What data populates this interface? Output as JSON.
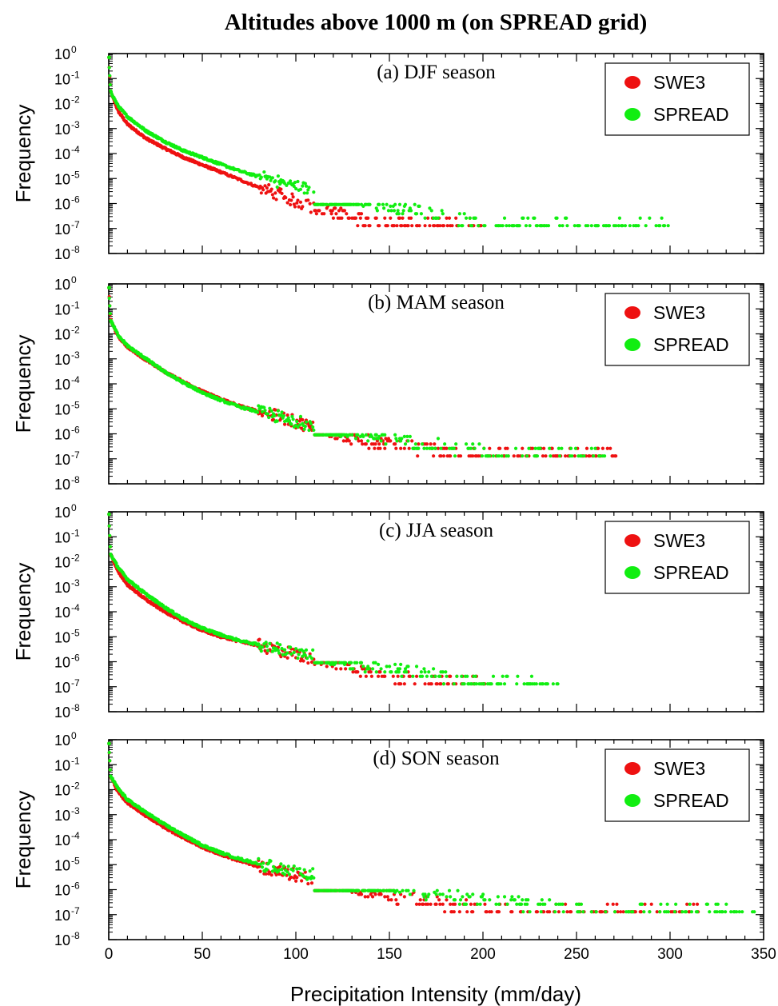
{
  "title": "Altitudes above 1000 m (on SPREAD grid)",
  "xlabel": "Precipitation Intensity (mm/day)",
  "ylabel": "Frequency",
  "colors": {
    "SWE3": "#ee1111",
    "SPREAD": "#11ee11"
  },
  "chart_data": [
    {
      "type": "scatter",
      "label": "(a) DJF season",
      "xlim": [
        0,
        350
      ],
      "ylim_log10": [
        -8,
        0
      ],
      "x_ticks": [
        0,
        50,
        100,
        150,
        200,
        250,
        300,
        350
      ],
      "y_tick_exponents": [
        0,
        -1,
        -2,
        -3,
        -4,
        -5,
        -6,
        -7,
        -8
      ],
      "legend": [
        "SWE3",
        "SPREAD"
      ],
      "legend_position": "top-right",
      "series": [
        {
          "name": "SWE3",
          "max_x": 199,
          "points": [
            [
              0,
              0.7
            ],
            [
              1,
              0.03
            ],
            [
              5,
              0.005
            ],
            [
              10,
              0.0015
            ],
            [
              20,
              0.0004
            ],
            [
              30,
              0.00016
            ],
            [
              40,
              7e-05
            ],
            [
              50,
              3.5e-05
            ],
            [
              60,
              1.8e-05
            ],
            [
              70,
              9e-06
            ],
            [
              80,
              4.5e-06
            ],
            [
              90,
              2.5e-06
            ],
            [
              100,
              1.2e-06
            ],
            [
              110,
              7e-07
            ],
            [
              120,
              4e-07
            ],
            [
              140,
              2e-07
            ],
            [
              160,
              1.5e-07
            ],
            [
              180,
              1.3e-07
            ],
            [
              199,
              1.3e-07
            ]
          ]
        },
        {
          "name": "SPREAD",
          "max_x": 299,
          "points": [
            [
              0,
              0.7
            ],
            [
              1,
              0.03
            ],
            [
              5,
              0.008
            ],
            [
              10,
              0.003
            ],
            [
              20,
              0.0008
            ],
            [
              30,
              0.0003
            ],
            [
              40,
              0.00013
            ],
            [
              50,
              7e-05
            ],
            [
              60,
              3.7e-05
            ],
            [
              70,
              2e-05
            ],
            [
              80,
              1.2e-05
            ],
            [
              90,
              8e-06
            ],
            [
              100,
              5e-06
            ],
            [
              110,
              3.2e-06
            ],
            [
              120,
              2.2e-06
            ],
            [
              140,
              1.1e-06
            ],
            [
              160,
              6e-07
            ],
            [
              180,
              3e-07
            ],
            [
              200,
              1.5e-07
            ],
            [
              250,
              1.3e-07
            ],
            [
              299,
              1.3e-07
            ]
          ]
        }
      ]
    },
    {
      "type": "scatter",
      "label": "(b) MAM season",
      "xlim": [
        0,
        350
      ],
      "ylim_log10": [
        -8,
        0
      ],
      "x_ticks": [
        0,
        50,
        100,
        150,
        200,
        250,
        300,
        350
      ],
      "y_tick_exponents": [
        0,
        -1,
        -2,
        -3,
        -4,
        -5,
        -6,
        -7,
        -8
      ],
      "legend": [
        "SWE3",
        "SPREAD"
      ],
      "legend_position": "top-right",
      "series": [
        {
          "name": "SWE3",
          "max_x": 271,
          "points": [
            [
              0,
              0.7
            ],
            [
              1,
              0.035
            ],
            [
              5,
              0.008
            ],
            [
              10,
              0.003
            ],
            [
              20,
              0.0009
            ],
            [
              30,
              0.0003
            ],
            [
              40,
              0.00012
            ],
            [
              50,
              5e-05
            ],
            [
              60,
              2.5e-05
            ],
            [
              70,
              1.3e-05
            ],
            [
              80,
              8e-06
            ],
            [
              90,
              5e-06
            ],
            [
              100,
              3e-06
            ],
            [
              110,
              1.8e-06
            ],
            [
              120,
              1.1e-06
            ],
            [
              140,
              5e-07
            ],
            [
              160,
              3e-07
            ],
            [
              180,
              2e-07
            ],
            [
              200,
              1.5e-07
            ],
            [
              271,
              1.3e-07
            ]
          ]
        },
        {
          "name": "SPREAD",
          "max_x": 265,
          "points": [
            [
              0,
              0.7
            ],
            [
              1,
              0.035
            ],
            [
              5,
              0.009
            ],
            [
              10,
              0.0033
            ],
            [
              20,
              0.001
            ],
            [
              30,
              0.0003
            ],
            [
              40,
              0.00011
            ],
            [
              50,
              4.5e-05
            ],
            [
              60,
              2.2e-05
            ],
            [
              70,
              1.2e-05
            ],
            [
              80,
              7.5e-06
            ],
            [
              90,
              5e-06
            ],
            [
              100,
              3.2e-06
            ],
            [
              110,
              2.2e-06
            ],
            [
              120,
              1.5e-06
            ],
            [
              140,
              8e-07
            ],
            [
              160,
              5e-07
            ],
            [
              180,
              3e-07
            ],
            [
              200,
              1.8e-07
            ],
            [
              265,
              1.3e-07
            ]
          ]
        }
      ]
    },
    {
      "type": "scatter",
      "label": "(c) JJA season",
      "xlim": [
        0,
        350
      ],
      "ylim_log10": [
        -8,
        0
      ],
      "x_ticks": [
        0,
        50,
        100,
        150,
        200,
        250,
        300,
        350
      ],
      "y_tick_exponents": [
        0,
        -1,
        -2,
        -3,
        -4,
        -5,
        -6,
        -7,
        -8
      ],
      "legend": [
        "SWE3",
        "SPREAD"
      ],
      "legend_position": "top-right",
      "series": [
        {
          "name": "SWE3",
          "max_x": 201,
          "points": [
            [
              0,
              0.8
            ],
            [
              1,
              0.02
            ],
            [
              5,
              0.004
            ],
            [
              10,
              0.0012
            ],
            [
              20,
              0.0003
            ],
            [
              30,
              0.0001
            ],
            [
              40,
              4e-05
            ],
            [
              50,
              1.8e-05
            ],
            [
              60,
              1e-05
            ],
            [
              70,
              6.5e-06
            ],
            [
              80,
              4.5e-06
            ],
            [
              90,
              3e-06
            ],
            [
              100,
              2e-06
            ],
            [
              110,
              1.3e-06
            ],
            [
              120,
              9e-07
            ],
            [
              140,
              4e-07
            ],
            [
              160,
              2.2e-07
            ],
            [
              180,
              1.5e-07
            ],
            [
              201,
              1.3e-07
            ]
          ]
        },
        {
          "name": "SPREAD",
          "max_x": 240,
          "points": [
            [
              0,
              0.8
            ],
            [
              1,
              0.02
            ],
            [
              5,
              0.006
            ],
            [
              10,
              0.002
            ],
            [
              20,
              0.0005
            ],
            [
              30,
              0.00015
            ],
            [
              40,
              5e-05
            ],
            [
              50,
              2.2e-05
            ],
            [
              60,
              1.2e-05
            ],
            [
              70,
              7e-06
            ],
            [
              80,
              4.8e-06
            ],
            [
              90,
              3.3e-06
            ],
            [
              100,
              2.3e-06
            ],
            [
              110,
              1.7e-06
            ],
            [
              120,
              1.2e-06
            ],
            [
              140,
              7e-07
            ],
            [
              160,
              4e-07
            ],
            [
              180,
              2.5e-07
            ],
            [
              200,
              1.5e-07
            ],
            [
              240,
              1.3e-07
            ]
          ]
        }
      ]
    },
    {
      "type": "scatter",
      "label": "(d) SON season",
      "xlim": [
        0,
        350
      ],
      "ylim_log10": [
        -8,
        0
      ],
      "x_ticks": [
        0,
        50,
        100,
        150,
        200,
        250,
        300,
        350
      ],
      "y_tick_exponents": [
        0,
        -1,
        -2,
        -3,
        -4,
        -5,
        -6,
        -7,
        -8
      ],
      "legend": [
        "SWE3",
        "SPREAD"
      ],
      "legend_position": "top-right",
      "series": [
        {
          "name": "SWE3",
          "max_x": 315,
          "points": [
            [
              0,
              0.7
            ],
            [
              1,
              0.035
            ],
            [
              5,
              0.008
            ],
            [
              10,
              0.003
            ],
            [
              20,
              0.0009
            ],
            [
              30,
              0.0003
            ],
            [
              40,
              0.00012
            ],
            [
              50,
              5e-05
            ],
            [
              60,
              2.5e-05
            ],
            [
              70,
              1.4e-05
            ],
            [
              80,
              8.5e-06
            ],
            [
              90,
              5.5e-06
            ],
            [
              100,
              3.8e-06
            ],
            [
              110,
              2.6e-06
            ],
            [
              120,
              1.8e-06
            ],
            [
              140,
              8e-07
            ],
            [
              160,
              4.5e-07
            ],
            [
              180,
              2.5e-07
            ],
            [
              200,
              1.6e-07
            ],
            [
              315,
              1.3e-07
            ]
          ]
        },
        {
          "name": "SPREAD",
          "max_x": 345,
          "points": [
            [
              0,
              0.7
            ],
            [
              1,
              0.035
            ],
            [
              5,
              0.011
            ],
            [
              10,
              0.004
            ],
            [
              20,
              0.0012
            ],
            [
              30,
              0.0004
            ],
            [
              40,
              0.00015
            ],
            [
              50,
              6e-05
            ],
            [
              60,
              3e-05
            ],
            [
              70,
              1.7e-05
            ],
            [
              80,
              1.1e-05
            ],
            [
              90,
              7.5e-06
            ],
            [
              100,
              5.5e-06
            ],
            [
              110,
              4e-06
            ],
            [
              120,
              3e-06
            ],
            [
              140,
              1.7e-06
            ],
            [
              160,
              1e-06
            ],
            [
              180,
              6e-07
            ],
            [
              200,
              4e-07
            ],
            [
              250,
              2e-07
            ],
            [
              300,
              1.5e-07
            ],
            [
              345,
              1.3e-07
            ]
          ]
        }
      ]
    }
  ]
}
